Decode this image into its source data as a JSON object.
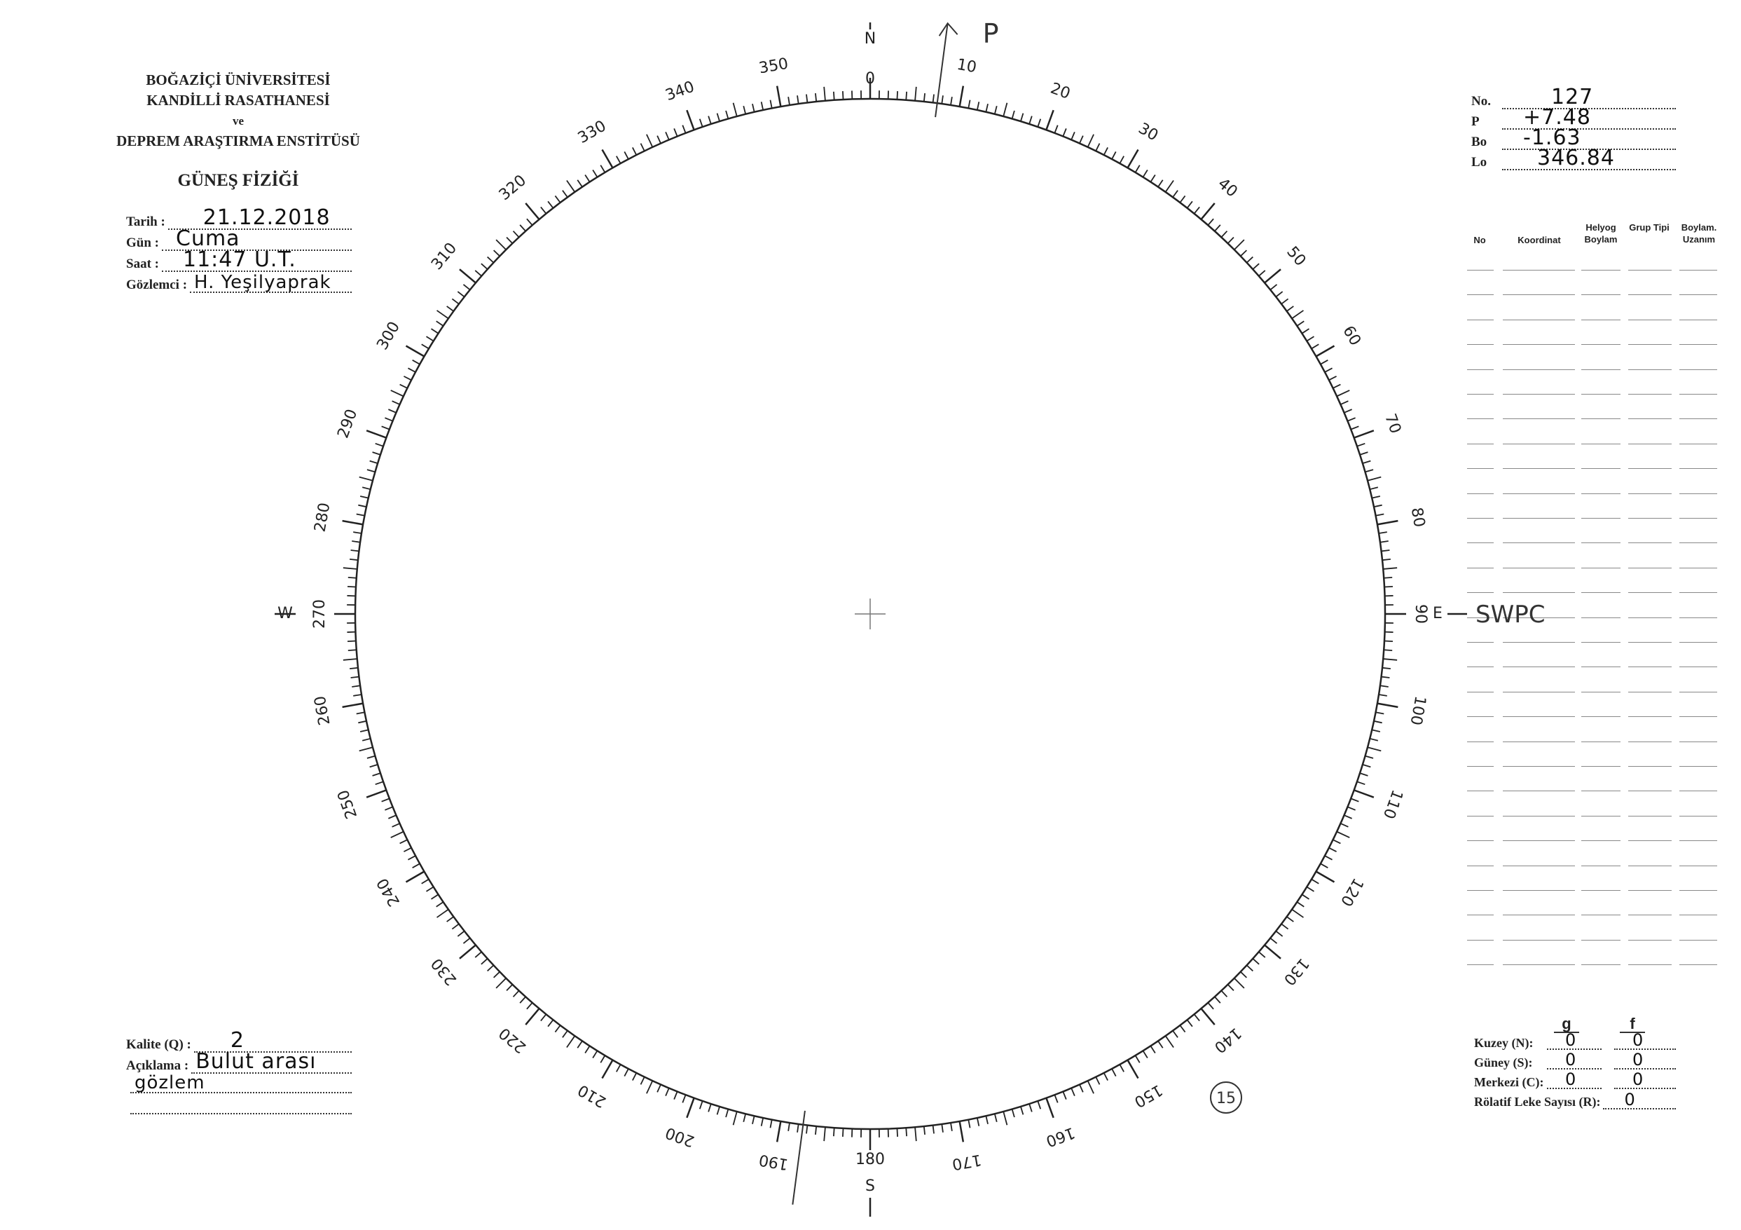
{
  "header": {
    "institution_lines": [
      "BOĞAZİÇİ ÜNİVERSİTESİ",
      "KANDİLLİ RASATHANESİ",
      "ve",
      "DEPREM ARAŞTIRMA ENSTİTÜSÜ"
    ],
    "title": "GÜNEŞ FİZİĞİ"
  },
  "observation": {
    "date_label": "Tarih :",
    "date_value": "21.12.2018",
    "day_label": "Gün :",
    "day_value": "Cuma",
    "time_label": "Saat :",
    "time_value": "11:47 U.T.",
    "observer_label": "Gözlemci :",
    "observer_value": "H. Yeşilyaprak"
  },
  "ephemeris": {
    "no_label": "No.",
    "no_value": "127",
    "p_label": "P",
    "p_value": "+7.48",
    "bo_label": "Bo",
    "bo_value": "-1.63",
    "lo_label": "Lo",
    "lo_value": "346.84"
  },
  "table": {
    "headers": [
      "No",
      "Koordinat",
      "Helyog Boylam",
      "Grup Tipi",
      "Boylam. Uzanım"
    ],
    "rows": []
  },
  "quality": {
    "kalite_label": "Kalite (Q) :",
    "kalite_value": "2",
    "aciklama_label": "Açıklama :",
    "aciklama_value_1": "Bulut arası",
    "aciklama_value_2": "gözlem"
  },
  "counts": {
    "col_g": "g",
    "col_f": "f",
    "kuzey_label": "Kuzey (N):",
    "kuzey_g": "0",
    "kuzey_f": "0",
    "guney_label": "Güney (S):",
    "guney_g": "0",
    "guney_f": "0",
    "merkezi_label": "Merkezi (C):",
    "merkezi_g": "0",
    "merkezi_f": "0",
    "rolatif_label": "Rölatif Leke Sayısı (R):",
    "rolatif_value": "0"
  },
  "disk": {
    "north": "N",
    "south": "S",
    "east": "E",
    "west": "W",
    "degree_labels": [
      "0",
      "10",
      "20",
      "30",
      "40",
      "50",
      "60",
      "70",
      "80",
      "90",
      "100",
      "110",
      "120",
      "130",
      "140",
      "150",
      "160",
      "170",
      "180",
      "190",
      "200",
      "210",
      "220",
      "230",
      "240",
      "250",
      "260",
      "270",
      "280",
      "290",
      "300",
      "310",
      "320",
      "330",
      "340",
      "350"
    ],
    "p_axis_label": "P",
    "p_angle_deg": 7.48,
    "east_annotation": "SWPC",
    "circled_number": "15",
    "ink_color": "#222222"
  }
}
